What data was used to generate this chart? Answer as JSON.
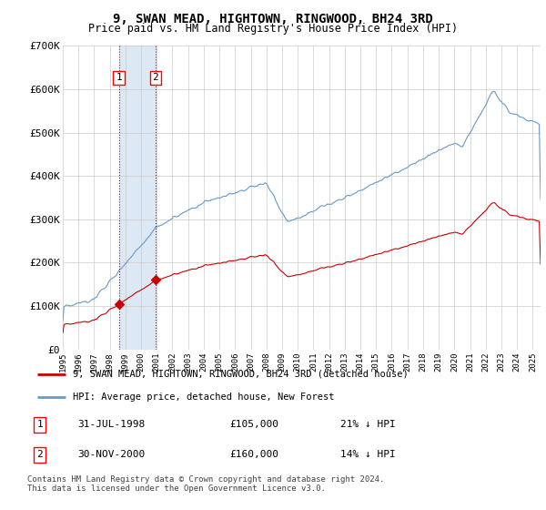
{
  "title": "9, SWAN MEAD, HIGHTOWN, RINGWOOD, BH24 3RD",
  "subtitle": "Price paid vs. HM Land Registry's House Price Index (HPI)",
  "ylim": [
    0,
    700000
  ],
  "yticks": [
    0,
    100000,
    200000,
    300000,
    400000,
    500000,
    600000,
    700000
  ],
  "ytick_labels": [
    "£0",
    "£100K",
    "£200K",
    "£300K",
    "£400K",
    "£500K",
    "£600K",
    "£700K"
  ],
  "sale1_date": 1998.58,
  "sale1_price": 105000,
  "sale2_date": 2000.92,
  "sale2_price": 160000,
  "legend_property": "9, SWAN MEAD, HIGHTOWN, RINGWOOD, BH24 3RD (detached house)",
  "legend_hpi": "HPI: Average price, detached house, New Forest",
  "table_rows": [
    {
      "num": "1",
      "date": "31-JUL-1998",
      "price": "£105,000",
      "hpi": "21% ↓ HPI"
    },
    {
      "num": "2",
      "date": "30-NOV-2000",
      "price": "£160,000",
      "hpi": "14% ↓ HPI"
    }
  ],
  "footer": "Contains HM Land Registry data © Crown copyright and database right 2024.\nThis data is licensed under the Open Government Licence v3.0.",
  "property_color": "#cc0000",
  "hpi_color": "#6699cc",
  "shade_color": "#dce9f5",
  "background_color": "#ffffff",
  "grid_color": "#cccccc",
  "xlim_start": 1995.0,
  "xlim_end": 2025.5
}
